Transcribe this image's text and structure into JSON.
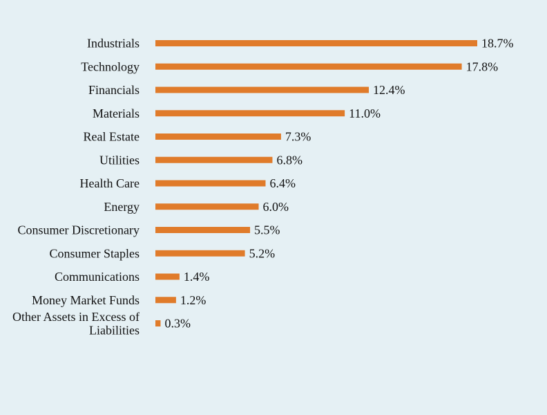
{
  "chart_data": {
    "type": "bar",
    "orientation": "horizontal",
    "title": "",
    "xlabel": "",
    "ylabel": "",
    "xlim": [
      0,
      18.7
    ],
    "grid": false,
    "legend": "none",
    "bar_color": "#e07b2a",
    "background_color": "#e5f0f4",
    "categories": [
      "Industrials",
      "Technology",
      "Financials",
      "Materials",
      "Real Estate",
      "Utilities",
      "Health Care",
      "Energy",
      "Consumer Discretionary",
      "Consumer Staples",
      "Communications",
      "Money Market Funds",
      "Other Assets in Excess of Liabilities"
    ],
    "category_lines": [
      [
        "Industrials"
      ],
      [
        "Technology"
      ],
      [
        "Financials"
      ],
      [
        "Materials"
      ],
      [
        "Real Estate"
      ],
      [
        "Utilities"
      ],
      [
        "Health Care"
      ],
      [
        "Energy"
      ],
      [
        "Consumer Discretionary"
      ],
      [
        "Consumer Staples"
      ],
      [
        "Communications"
      ],
      [
        "Money Market Funds"
      ],
      [
        "Other Assets in Excess of",
        "Liabilities"
      ]
    ],
    "values": [
      18.7,
      17.8,
      12.4,
      11.0,
      7.3,
      6.8,
      6.4,
      6.0,
      5.5,
      5.2,
      1.4,
      1.2,
      0.3
    ],
    "value_labels": [
      "18.7%",
      "17.8%",
      "12.4%",
      "11.0%",
      "7.3%",
      "6.8%",
      "6.4%",
      "6.0%",
      "5.5%",
      "5.2%",
      "1.4%",
      "1.2%",
      "0.3%"
    ]
  }
}
